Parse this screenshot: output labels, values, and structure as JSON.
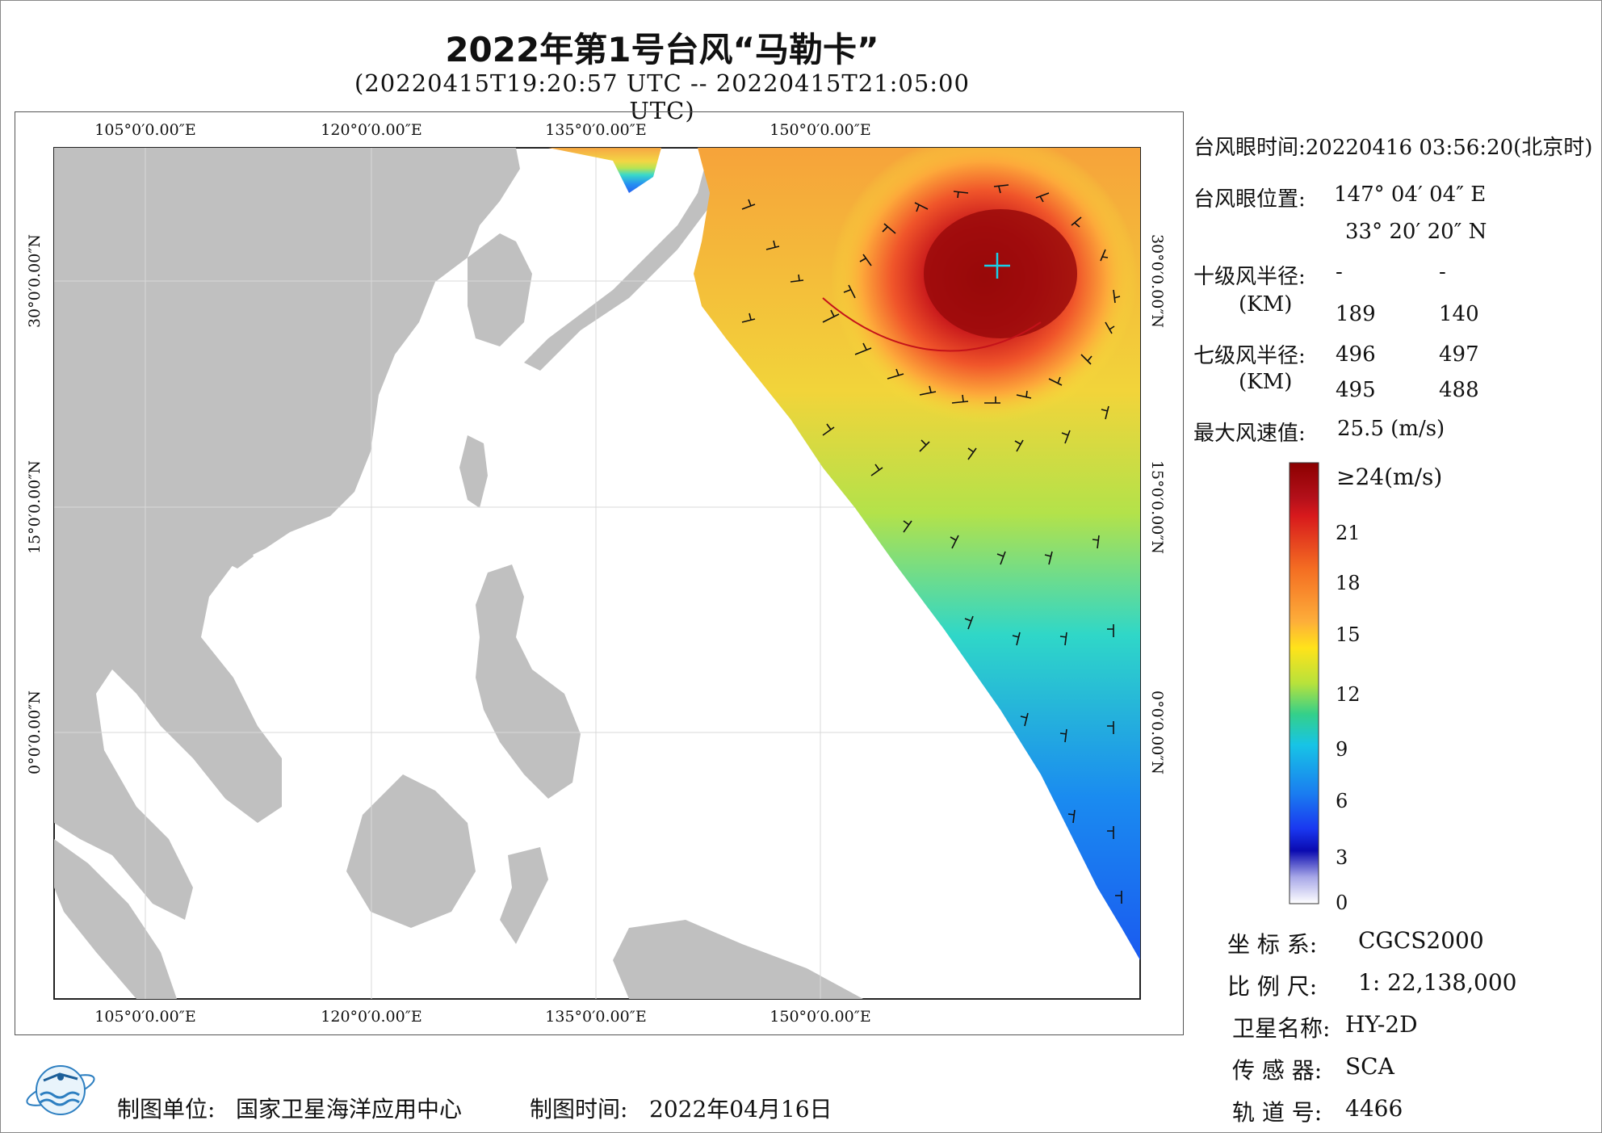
{
  "title": "2022年第1号台风“马勒卡”",
  "subtitle": "(20220415T19:20:57 UTC -- 20220415T21:05:00 UTC)",
  "map": {
    "lon_labels": [
      "105°0′0.00″E",
      "120°0′0.00″E",
      "135°0′0.00″E",
      "150°0′0.00″E"
    ],
    "lat_labels": [
      "30°0′0.00″N",
      "15°0′0.00″N",
      "0°0′0.00″N"
    ],
    "land_color": "#c0c0c0",
    "ocean_color": "#ffffff",
    "typhoon_marker": "cyan-cross-icon"
  },
  "info": {
    "eye_time_label": "台风眼时间:",
    "eye_time_value": "20220416 03:56:20(北京时)",
    "eye_position_label": "台风眼位置:",
    "eye_lon": "147° 04′ 04″ E",
    "eye_lat": "33° 20′ 20″ N",
    "r10_label": "十级风半径:",
    "r10_unit": "(KM)",
    "r10_values": [
      "-",
      "-",
      "189",
      "140"
    ],
    "r7_label": "七级风半径:",
    "r7_unit": "(KM)",
    "r7_values": [
      "496",
      "497",
      "495",
      "488"
    ],
    "max_wind_label": "最大风速值:",
    "max_wind_value": "25.5 (m/s)"
  },
  "legend": {
    "title": "≥24(m/s)",
    "ticks": [
      "21",
      "18",
      "15",
      "12",
      "9",
      "6",
      "3",
      "0"
    ],
    "colors": [
      "#8b0000",
      "#d7191c",
      "#f46d22",
      "#fdae3a",
      "#ffe31a",
      "#b8e23b",
      "#34d08a",
      "#17c4e6",
      "#1a7df0",
      "#1a38f0",
      "#0a0ab0",
      "#a8a8e8",
      "#ffffff"
    ]
  },
  "meta": {
    "crs_label": "坐 标 系:",
    "crs_value": "CGCS2000",
    "scale_label": "比 例 尺:",
    "scale_value": "1: 22,138,000",
    "satellite_label": "卫星名称:",
    "satellite_value": "HY-2D",
    "sensor_label": "传 感 器:",
    "sensor_value": "SCA",
    "orbit_label": "轨 道 号:",
    "orbit_value": "4466"
  },
  "footer": {
    "unit_label": "制图单位:",
    "unit_value": "国家卫星海洋应用中心",
    "date_label": "制图时间:",
    "date_value": "2022年04月16日"
  }
}
